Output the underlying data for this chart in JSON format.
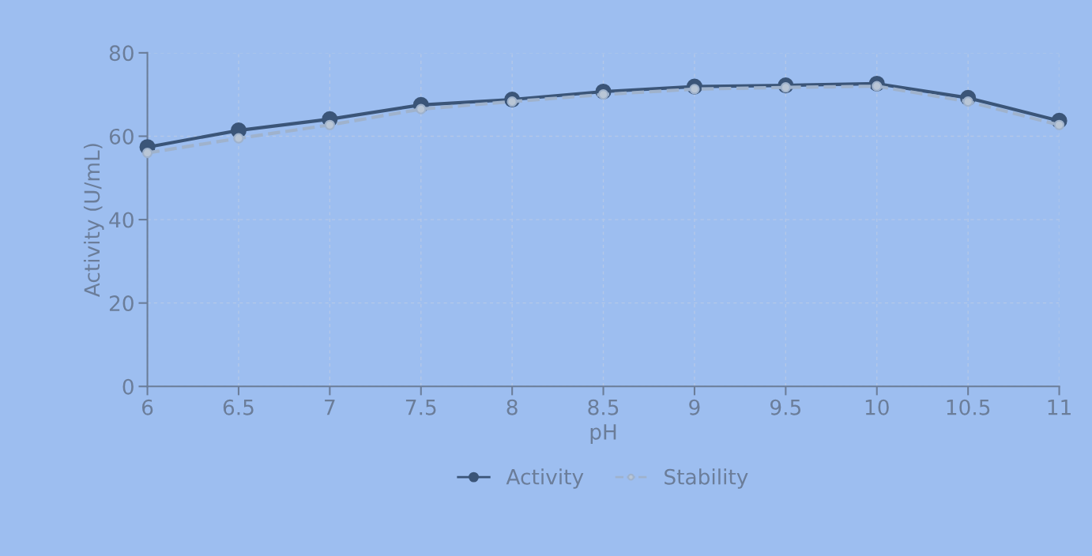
{
  "chart_data": {
    "type": "line",
    "xlabel": "pH",
    "ylabel": "Activity (U/mL)",
    "x": [
      6,
      6.5,
      7,
      7.5,
      8,
      8.5,
      9,
      9.5,
      10,
      10.5,
      11
    ],
    "series": [
      {
        "name": "Activity",
        "color": "#3b5578",
        "line_style": "solid",
        "values": [
          57.4,
          61.4,
          64.1,
          67.5,
          68.8,
          70.7,
          71.9,
          72.2,
          72.6,
          69.2,
          63.7
        ]
      },
      {
        "name": "Stability",
        "color": "#9fb2cc",
        "line_style": "dashed",
        "values": [
          56,
          59.5,
          62.7,
          66.5,
          68.3,
          70,
          71.3,
          71.7,
          72,
          68.3,
          62.7
        ]
      }
    ],
    "xlim": [
      6,
      11
    ],
    "xticks": [
      6,
      {
        "value": 6.5,
        "label": "6.5"
      },
      7,
      {
        "value": 7.5,
        "label": "7.5"
      },
      8,
      {
        "value": 8.5,
        "label": "8.5"
      },
      9,
      {
        "value": 9.5,
        "label": "9.5"
      },
      10,
      {
        "value": 10.5,
        "label": "10.5"
      },
      11
    ],
    "ylim": [
      0,
      80
    ],
    "yticks": [
      0,
      20,
      40,
      60,
      80
    ],
    "grid": true,
    "legend": "bottom",
    "marker": "circle"
  }
}
